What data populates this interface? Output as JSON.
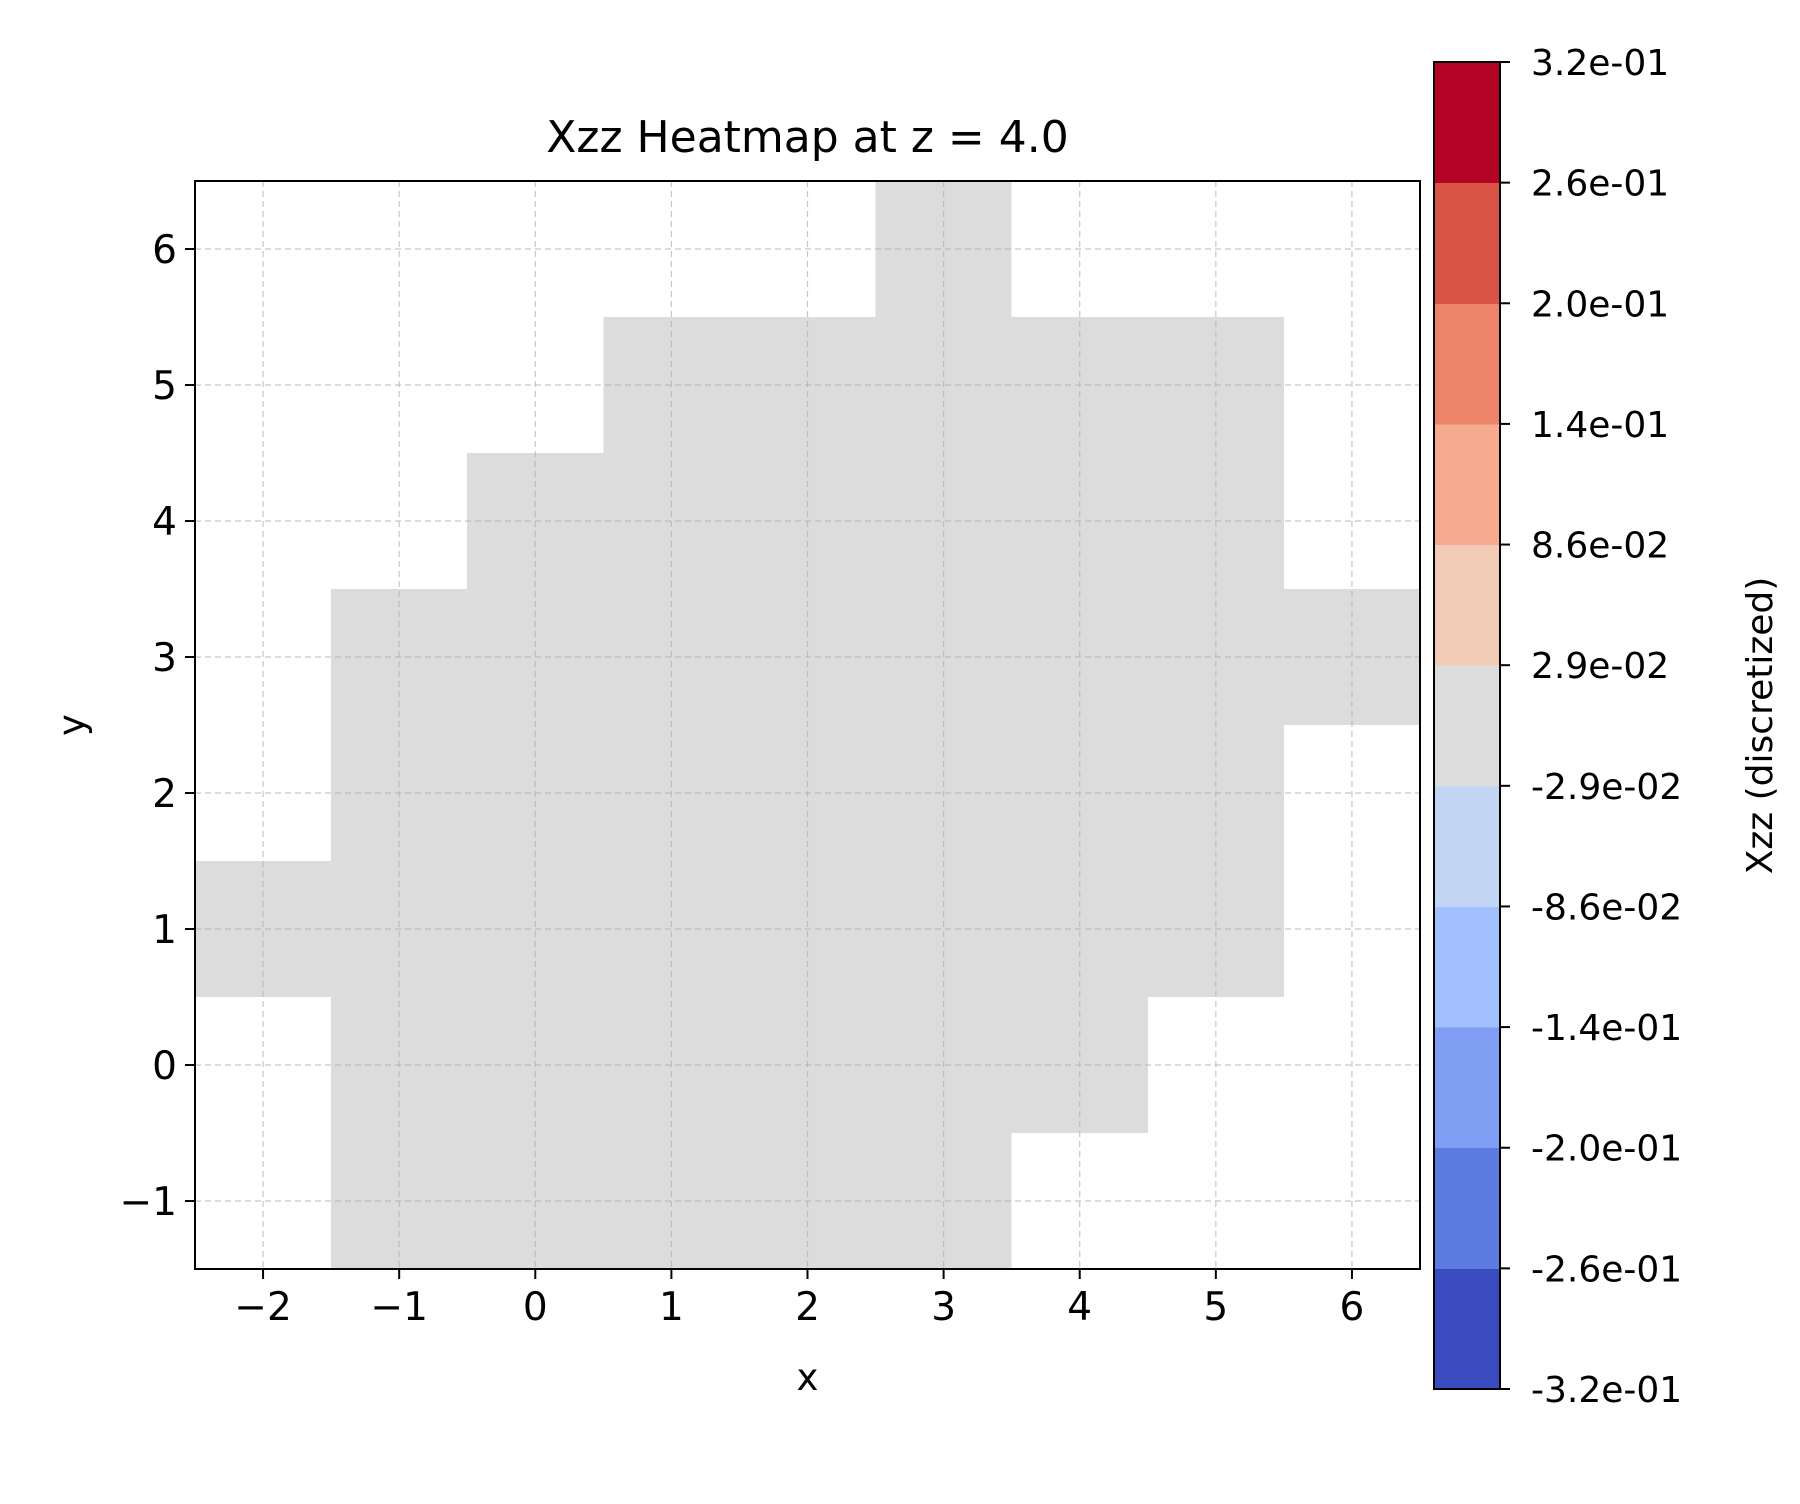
{
  "chart_data": {
    "type": "heatmap",
    "title": "Xzz Heatmap at z = 4.0",
    "xlabel": "x",
    "ylabel": "y",
    "xlim": [
      -2.5,
      6.5
    ],
    "ylim": [
      -1.5,
      6.5
    ],
    "xticks": [
      -2,
      -1,
      0,
      1,
      2,
      3,
      4,
      5,
      6
    ],
    "yticks": [
      -1,
      0,
      1,
      2,
      3,
      4,
      5,
      6
    ],
    "xtick_labels": [
      "−2",
      "−1",
      "0",
      "1",
      "2",
      "3",
      "4",
      "5",
      "6"
    ],
    "ytick_labels": [
      "−1",
      "0",
      "1",
      "2",
      "3",
      "4",
      "5",
      "6"
    ],
    "grid": true,
    "cells": [
      {
        "y": 6,
        "x_from": 3,
        "x_to": 3,
        "value": 0.0
      },
      {
        "y": 5,
        "x_from": 1,
        "x_to": 5,
        "value": 0.0
      },
      {
        "y": 4,
        "x_from": 0,
        "x_to": 5,
        "value": 0.0
      },
      {
        "y": 3,
        "x_from": -1,
        "x_to": 6,
        "value": 0.0
      },
      {
        "y": 2,
        "x_from": -1,
        "x_to": 5,
        "value": 0.0
      },
      {
        "y": 1,
        "x_from": -2,
        "x_to": 5,
        "value": 0.0
      },
      {
        "y": 0,
        "x_from": -1,
        "x_to": 4,
        "value": 0.0
      },
      {
        "y": -1,
        "x_from": -1,
        "x_to": 3,
        "value": 0.0
      }
    ],
    "colorbar": {
      "label": "Xzz (discretized)",
      "boundaries": [
        -0.32,
        -0.26,
        -0.2,
        -0.14,
        -0.086,
        -0.029,
        0.029,
        0.086,
        0.14,
        0.2,
        0.26,
        0.32
      ],
      "tick_labels": [
        "-3.2e-01",
        "-2.6e-01",
        "-2.0e-01",
        "-1.4e-01",
        "-8.6e-02",
        "-2.9e-02",
        "2.9e-02",
        "8.6e-02",
        "1.4e-01",
        "2.0e-01",
        "2.6e-01",
        "3.2e-01"
      ],
      "colors": [
        "#3b4cc0",
        "#5b7be0",
        "#7f9ef4",
        "#a3c0fe",
        "#c2d5f3",
        "#dcdcdc",
        "#f2cbb7",
        "#f6ab8e",
        "#ed8469",
        "#d95347",
        "#b40426"
      ]
    }
  }
}
